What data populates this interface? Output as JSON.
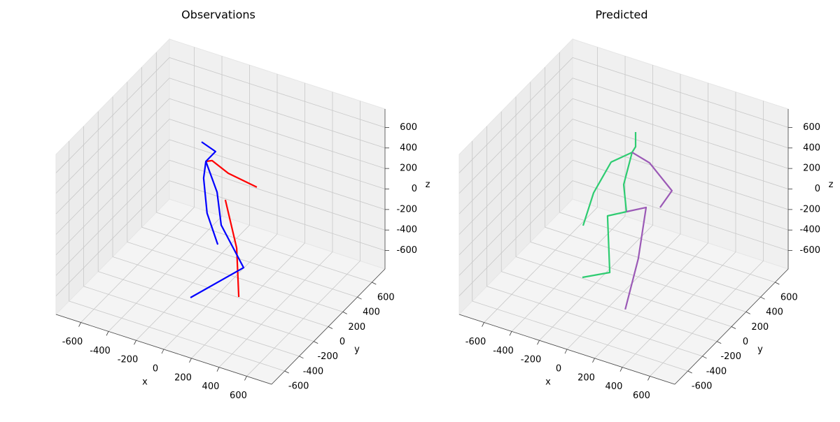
{
  "chart_data": [
    {
      "type": "line3d",
      "title": "Observations",
      "xlabel": "x",
      "ylabel": "y",
      "zlabel": "z",
      "xlim": [
        -780,
        780
      ],
      "ylim": [
        -780,
        780
      ],
      "zlim": [
        -780,
        780
      ],
      "xticks": [
        -600,
        -400,
        -200,
        0,
        200,
        400,
        600
      ],
      "yticks": [
        -600,
        -400,
        -200,
        0,
        200,
        400,
        600
      ],
      "zticks": [
        -600,
        -400,
        -200,
        0,
        200,
        400,
        600
      ],
      "series": [
        {
          "color": "#ff0000",
          "x": [
            -106,
            -61,
            56,
            263,
            null,
            35,
            117,
            214
          ],
          "y": [
            0,
            0,
            0,
            0,
            null,
            0,
            0,
            -156
          ],
          "z": [
            444,
            471,
            399,
            354,
            null,
            131,
            -303,
            -626
          ]
        },
        {
          "color": "#0000ff",
          "x": [
            -137,
            -36,
            -106,
            -122,
            -97,
            -20,
            null,
            -106,
            -25,
            5,
            167,
            -53
          ],
          "y": [
            0,
            0,
            0,
            0,
            0,
            0,
            null,
            0,
            0,
            0,
            0,
            -312
          ],
          "z": [
            621,
            571,
            444,
            274,
            -56,
            -329,
            null,
            444,
            180,
            -128,
            -473,
            -636
          ]
        }
      ]
    },
    {
      "type": "line3d",
      "title": "Predicted",
      "xlabel": "x",
      "ylabel": "y",
      "zlabel": "z",
      "xlim": [
        -780,
        780
      ],
      "ylim": [
        -780,
        780
      ],
      "zlim": [
        -780,
        780
      ],
      "xticks": [
        -600,
        -400,
        -200,
        0,
        200,
        400,
        600
      ],
      "yticks": [
        -600,
        -400,
        -200,
        0,
        200,
        400,
        600
      ],
      "zticks": [
        -600,
        -400,
        -200,
        0,
        200,
        400,
        600
      ],
      "series": [
        {
          "color": "#2ecc71",
          "x": [
            4,
            86,
            61,
            -91,
            -218,
            -294,
            null,
            61,
            0,
            20,
            -117,
            -101,
            -299
          ],
          "y": [
            156,
            0,
            0,
            0,
            0,
            0,
            null,
            0,
            0,
            0,
            0,
            0,
            0
          ],
          "z": [
            666,
            671,
            605,
            444,
            89,
            -264,
            null,
            605,
            265,
            9,
            -92,
            -637,
            -771
          ]
        },
        {
          "color": "#9b59b6",
          "x": [
            61,
            187,
            349,
            263,
            null,
            20,
            162,
            106,
            175
          ],
          "y": [
            0,
            0,
            0,
            0,
            null,
            0,
            0,
            0,
            -312
          ],
          "z": [
            605,
            558,
            357,
            156,
            null,
            9,
            112,
            -410,
            -652
          ]
        }
      ]
    }
  ]
}
